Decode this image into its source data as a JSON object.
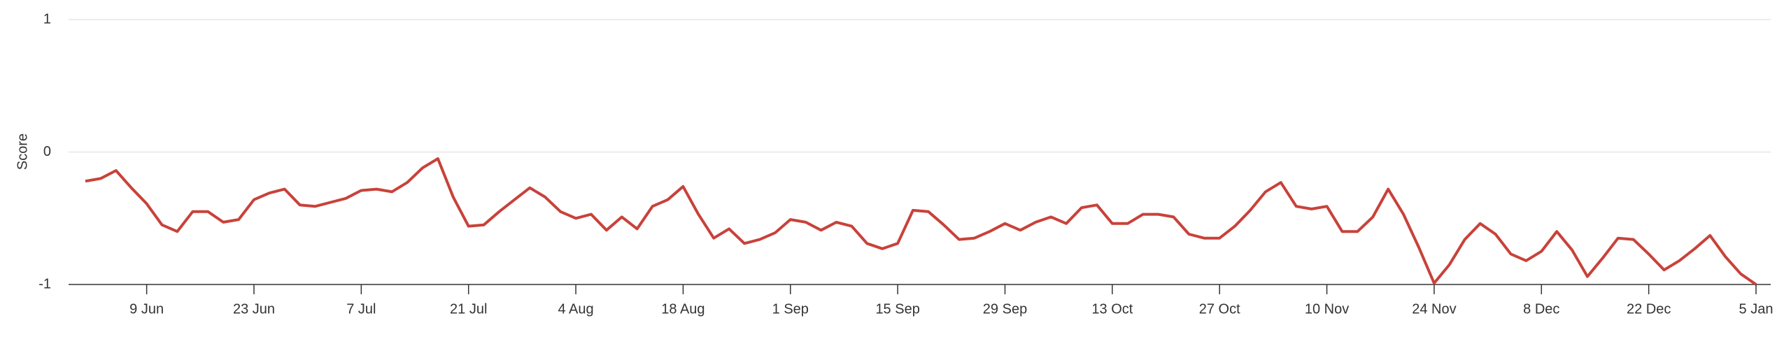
{
  "chart_data": {
    "type": "line",
    "y_label": "Score",
    "x": [
      "1 Jun",
      "3 Jun",
      "5 Jun",
      "7 Jun",
      "9 Jun",
      "11 Jun",
      "13 Jun",
      "15 Jun",
      "17 Jun",
      "19 Jun",
      "21 Jun",
      "23 Jun",
      "25 Jun",
      "27 Jun",
      "29 Jun",
      "1 Jul",
      "3 Jul",
      "5 Jul",
      "7 Jul",
      "9 Jul",
      "11 Jul",
      "13 Jul",
      "15 Jul",
      "17 Jul",
      "19 Jul",
      "21 Jul",
      "23 Jul",
      "25 Jul",
      "27 Jul",
      "29 Jul",
      "31 Jul",
      "2 Aug",
      "4 Aug",
      "6 Aug",
      "8 Aug",
      "10 Aug",
      "12 Aug",
      "14 Aug",
      "16 Aug",
      "18 Aug",
      "20 Aug",
      "22 Aug",
      "24 Aug",
      "26 Aug",
      "28 Aug",
      "30 Aug",
      "1 Sep",
      "3 Sep",
      "5 Sep",
      "7 Sep",
      "9 Sep",
      "11 Sep",
      "13 Sep",
      "15 Sep",
      "17 Sep",
      "19 Sep",
      "21 Sep",
      "23 Sep",
      "25 Sep",
      "27 Sep",
      "29 Sep",
      "1 Oct",
      "3 Oct",
      "5 Oct",
      "7 Oct",
      "9 Oct",
      "11 Oct",
      "13 Oct",
      "15 Oct",
      "17 Oct",
      "19 Oct",
      "21 Oct",
      "23 Oct",
      "25 Oct",
      "27 Oct",
      "29 Oct",
      "31 Oct",
      "2 Nov",
      "4 Nov",
      "6 Nov",
      "8 Nov",
      "10 Nov",
      "12 Nov",
      "14 Nov",
      "16 Nov",
      "18 Nov",
      "20 Nov",
      "22 Nov",
      "24 Nov",
      "26 Nov",
      "28 Nov",
      "30 Nov",
      "2 Dec",
      "4 Dec",
      "6 Dec",
      "8 Dec",
      "10 Dec",
      "12 Dec",
      "14 Dec",
      "16 Dec",
      "18 Dec",
      "20 Dec",
      "22 Dec",
      "24 Dec",
      "26 Dec",
      "28 Dec",
      "30 Dec",
      "1 Jan",
      "3 Jan",
      "5 Jan"
    ],
    "series": [
      {
        "color": "#c8423a",
        "values": [
          -0.22,
          -0.2,
          -0.14,
          -0.27,
          -0.39,
          -0.55,
          -0.6,
          -0.45,
          -0.45,
          -0.53,
          -0.51,
          -0.36,
          -0.31,
          -0.28,
          -0.4,
          -0.41,
          -0.38,
          -0.35,
          -0.29,
          -0.28,
          -0.3,
          -0.23,
          -0.12,
          -0.05,
          -0.34,
          -0.56,
          -0.55,
          -0.45,
          -0.36,
          -0.27,
          -0.34,
          -0.45,
          -0.5,
          -0.47,
          -0.59,
          -0.49,
          -0.58,
          -0.41,
          -0.36,
          -0.26,
          -0.47,
          -0.65,
          -0.58,
          -0.69,
          -0.66,
          -0.61,
          -0.51,
          -0.53,
          -0.59,
          -0.53,
          -0.56,
          -0.69,
          -0.73,
          -0.69,
          -0.44,
          -0.45,
          -0.55,
          -0.66,
          -0.65,
          -0.6,
          -0.54,
          -0.59,
          -0.53,
          -0.49,
          -0.54,
          -0.42,
          -0.4,
          -0.54,
          -0.54,
          -0.47,
          -0.47,
          -0.49,
          -0.62,
          -0.65,
          -0.65,
          -0.56,
          -0.44,
          -0.3,
          -0.23,
          -0.41,
          -0.43,
          -0.41,
          -0.6,
          -0.6,
          -0.49,
          -0.28,
          -0.47,
          -0.72,
          -0.99,
          -0.85,
          -0.66,
          -0.54,
          -0.62,
          -0.77,
          -0.82,
          -0.75,
          -0.6,
          -0.74,
          -0.94,
          -0.8,
          -0.65,
          -0.66,
          -0.77,
          -0.89,
          -0.82,
          -0.73,
          -0.63,
          -0.79,
          -0.92,
          -1.0
        ]
      }
    ],
    "xticks": [
      "9 Jun",
      "23 Jun",
      "7 Jul",
      "21 Jul",
      "4 Aug",
      "18 Aug",
      "1 Sep",
      "15 Sep",
      "29 Sep",
      "13 Oct",
      "27 Oct",
      "10 Nov",
      "24 Nov",
      "8 Dec",
      "22 Dec",
      "5 Jan"
    ],
    "ylim": [
      -1,
      1
    ],
    "yticks": [
      -1,
      0,
      1
    ],
    "grid": true
  }
}
